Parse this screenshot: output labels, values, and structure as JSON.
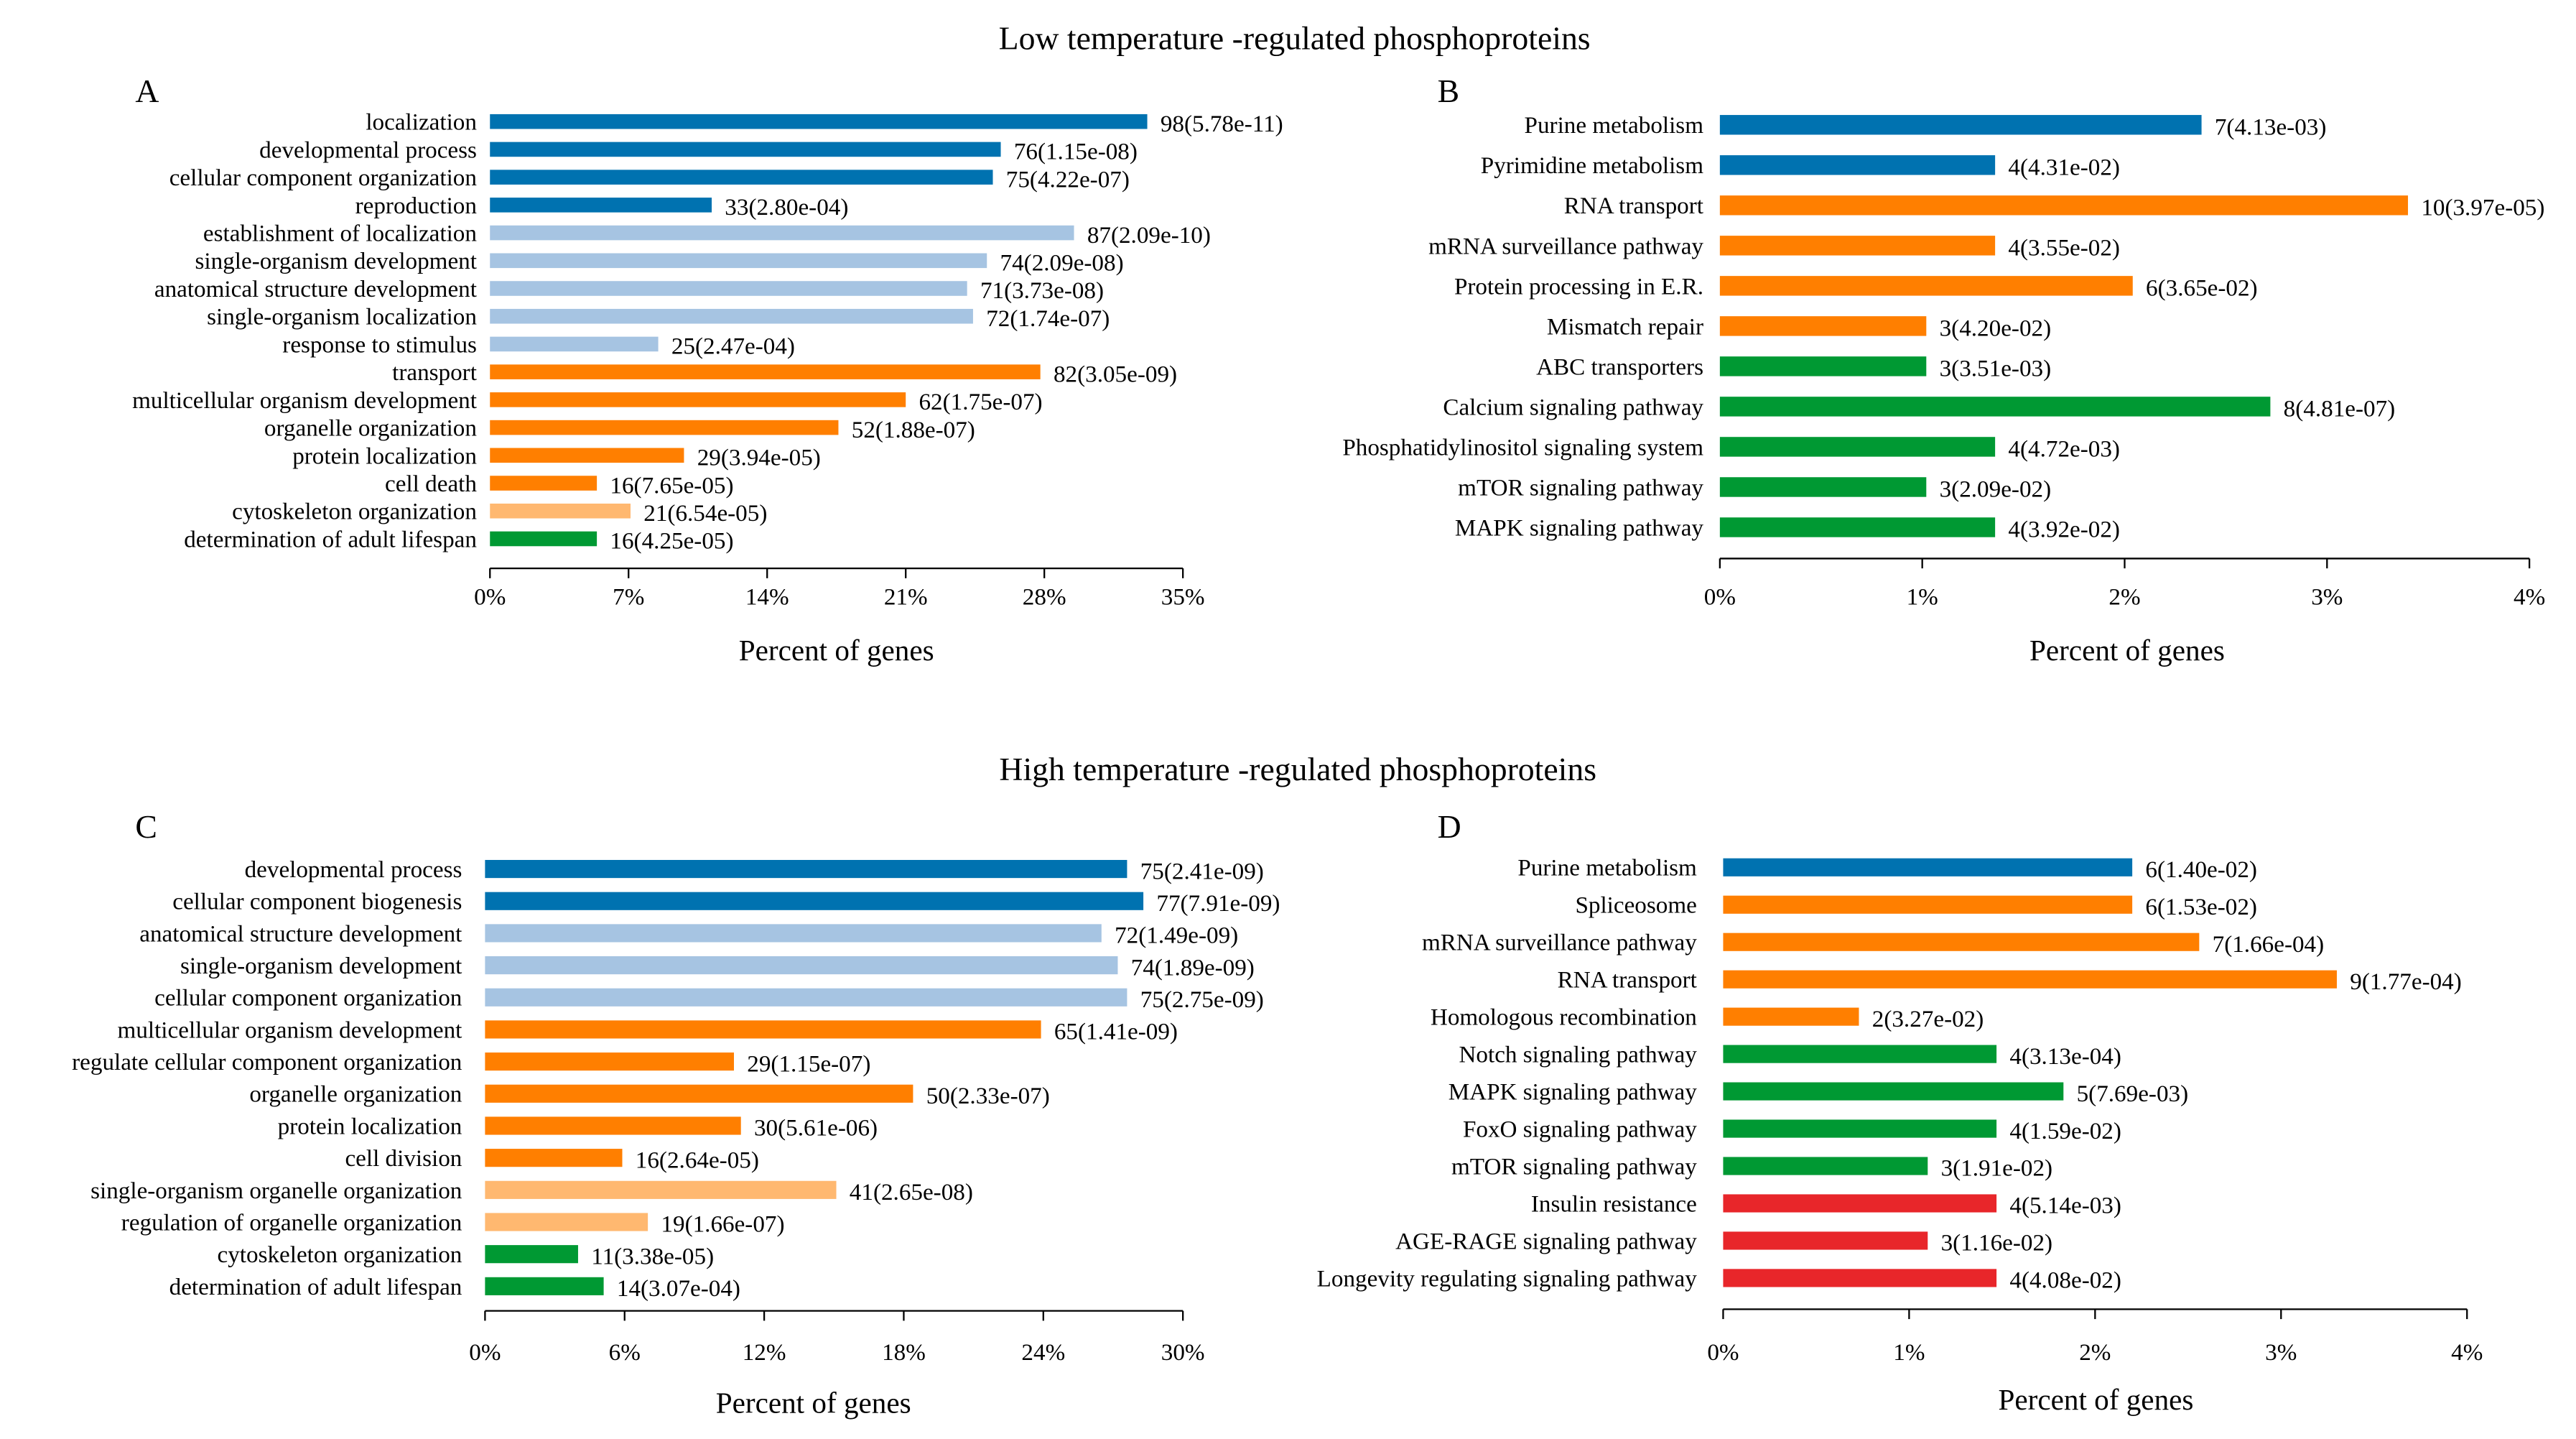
{
  "titles": {
    "low": "Low temperature -regulated phosphoproteins",
    "high": "High temperature -regulated phosphoproteins"
  },
  "colors": {
    "dark_blue": "#0072B0",
    "light_blue": "#A6C4E2",
    "orange": "#FF7F00",
    "light_orange": "#FFB870",
    "green": "#009933",
    "red": "#E8262A"
  },
  "chart_data": [
    {
      "panel": "A",
      "type": "bar",
      "orientation": "horizontal",
      "xlabel": "Percent of genes",
      "xlim": [
        0,
        35
      ],
      "xticks": [
        "0%",
        "7%",
        "14%",
        "21%",
        "28%",
        "35%"
      ],
      "categories": [
        "localization",
        "developmental process",
        "cellular component organization",
        "reproduction",
        "establishment of localization",
        "single-organism development",
        "anatomical structure development",
        "single-organism localization",
        "response to stimulus",
        "transport",
        "multicellular organism development",
        "organelle organization",
        "protein localization",
        "cell death",
        "cytoskeleton organization",
        "determination of  adult lifespan"
      ],
      "values": [
        33.2,
        25.8,
        25.4,
        11.2,
        29.5,
        25.1,
        24.1,
        24.4,
        8.5,
        27.8,
        21.0,
        17.6,
        9.8,
        5.4,
        7.1,
        5.4
      ],
      "labels": [
        "98(5.78e-11)",
        "76(1.15e-08)",
        "75(4.22e-07)",
        "33(2.80e-04)",
        "87(2.09e-10)",
        "74(2.09e-08)",
        "71(3.73e-08)",
        "72(1.74e-07)",
        "25(2.47e-04)",
        "82(3.05e-09)",
        "62(1.75e-07)",
        "52(1.88e-07)",
        "29(3.94e-05)",
        "16(7.65e-05)",
        "21(6.54e-05)",
        "16(4.25e-05)"
      ],
      "color_keys": [
        "dark_blue",
        "dark_blue",
        "dark_blue",
        "dark_blue",
        "light_blue",
        "light_blue",
        "light_blue",
        "light_blue",
        "light_blue",
        "orange",
        "orange",
        "orange",
        "orange",
        "orange",
        "light_orange",
        "green"
      ]
    },
    {
      "panel": "B",
      "type": "bar",
      "orientation": "horizontal",
      "xlabel": "Percent of genes",
      "xlim": [
        0,
        4
      ],
      "xticks": [
        "0%",
        "1%",
        "2%",
        "3%",
        "4%"
      ],
      "categories": [
        "Purine metabolism",
        "Pyrimidine metabolism",
        "RNA transport",
        "mRNA surveillance pathway",
        "Protein processing in E.R.",
        "Mismatch repair",
        "ABC transporters",
        "Calcium signaling pathway",
        "Phosphatidylinositol signaling system",
        "mTOR signaling pathway",
        "MAPK signaling pathway"
      ],
      "values": [
        2.38,
        1.36,
        3.4,
        1.36,
        2.04,
        1.02,
        1.02,
        2.72,
        1.36,
        1.02,
        1.36
      ],
      "labels": [
        "7(4.13e-03)",
        "4(4.31e-02)",
        "10(3.97e-05)",
        "4(3.55e-02)",
        "6(3.65e-02)",
        "3(4.20e-02)",
        "3(3.51e-03)",
        "8(4.81e-07)",
        "4(4.72e-03)",
        "3(2.09e-02)",
        "4(3.92e-02)"
      ],
      "color_keys": [
        "dark_blue",
        "dark_blue",
        "orange",
        "orange",
        "orange",
        "orange",
        "green",
        "green",
        "green",
        "green",
        "green"
      ]
    },
    {
      "panel": "C",
      "type": "bar",
      "orientation": "horizontal",
      "xlabel": "Percent of genes",
      "xlim": [
        0,
        30
      ],
      "xticks": [
        "0%",
        "6%",
        "12%",
        "18%",
        "24%",
        "30%"
      ],
      "categories": [
        "developmental process",
        "cellular component biogenesis",
        "anatomical structure development",
        "single-organism development",
        "cellular component organization",
        "multicellular organism development",
        "regulate cellular component organization",
        "organelle organization",
        "protein localization",
        "cell division",
        "single-organism organelle organization",
        "regulation of organelle organization",
        "cytoskeleton organization",
        "determination of  adult lifespan"
      ],
      "values": [
        27.6,
        28.3,
        26.5,
        27.2,
        27.6,
        23.9,
        10.7,
        18.4,
        11.0,
        5.9,
        15.1,
        7.0,
        4.0,
        5.1
      ],
      "labels": [
        "75(2.41e-09)",
        "77(7.91e-09)",
        "72(1.49e-09)",
        "74(1.89e-09)",
        "75(2.75e-09)",
        "65(1.41e-09)",
        "29(1.15e-07)",
        "50(2.33e-07)",
        "30(5.61e-06)",
        "16(2.64e-05)",
        "41(2.65e-08)",
        "19(1.66e-07)",
        "11(3.38e-05)",
        "14(3.07e-04)"
      ],
      "color_keys": [
        "dark_blue",
        "dark_blue",
        "light_blue",
        "light_blue",
        "light_blue",
        "orange",
        "orange",
        "orange",
        "orange",
        "orange",
        "light_orange",
        "light_orange",
        "green",
        "green"
      ]
    },
    {
      "panel": "D",
      "type": "bar",
      "orientation": "horizontal",
      "xlabel": "Percent of genes",
      "xlim": [
        0,
        4
      ],
      "xticks": [
        "0%",
        "1%",
        "2%",
        "3%",
        "4%"
      ],
      "categories": [
        "Purine metabolism",
        "Spliceosome",
        "mRNA surveillance pathway",
        "RNA transport",
        "Homologous recombination",
        "Notch signaling pathway",
        "MAPK signaling pathway",
        "FoxO signaling pathway",
        "mTOR signaling pathway",
        "Insulin resistance",
        "AGE-RAGE signaling pathway",
        "Longevity regulating signaling pathway"
      ],
      "values": [
        2.2,
        2.2,
        2.56,
        3.3,
        0.73,
        1.47,
        1.83,
        1.47,
        1.1,
        1.47,
        1.1,
        1.47
      ],
      "labels": [
        "6(1.40e-02)",
        "6(1.53e-02)",
        "7(1.66e-04)",
        "9(1.77e-04)",
        "2(3.27e-02)",
        "4(3.13e-04)",
        "5(7.69e-03)",
        "4(1.59e-02)",
        "3(1.91e-02)",
        "4(5.14e-03)",
        "3(1.16e-02)",
        "4(4.08e-02)"
      ],
      "color_keys": [
        "dark_blue",
        "orange",
        "orange",
        "orange",
        "orange",
        "green",
        "green",
        "green",
        "green",
        "red",
        "red",
        "red"
      ]
    }
  ]
}
